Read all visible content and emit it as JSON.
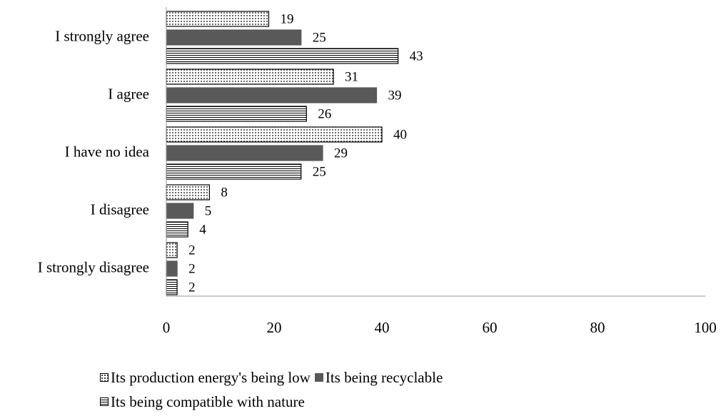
{
  "chart_data": {
    "type": "bar",
    "orientation": "horizontal",
    "categories": [
      "I strongly agree",
      "I agree",
      "I have no idea",
      "I disagree",
      "I strongly disagree"
    ],
    "series": [
      {
        "name": "Its production energy's being low",
        "values": [
          19,
          31,
          40,
          8,
          2
        ],
        "color": "#ffffff",
        "pattern": "dotted"
      },
      {
        "name": "Its being recyclable",
        "values": [
          25,
          39,
          29,
          5,
          2
        ],
        "color": "#595959",
        "pattern": "solid"
      },
      {
        "name": "Its being compatible with nature",
        "values": [
          43,
          26,
          25,
          4,
          2
        ],
        "color": "#ffffff",
        "pattern": "horizontal-lines"
      }
    ],
    "xlim": [
      0,
      100
    ],
    "xticks": [
      "0",
      "20",
      "40",
      "60",
      "80",
      "100"
    ],
    "title": "",
    "xlabel": "",
    "ylabel": "",
    "grid": false,
    "legend_position": "bottom"
  }
}
